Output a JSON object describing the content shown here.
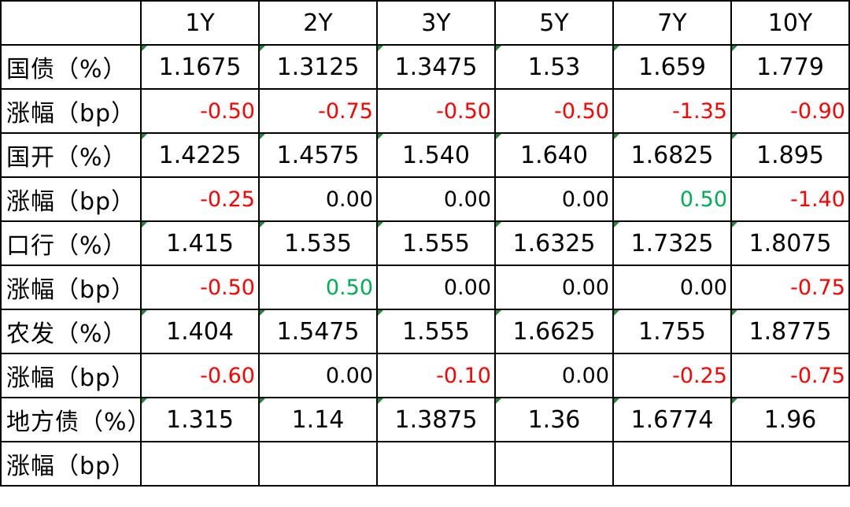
{
  "columns": [
    "1Y",
    "2Y",
    "3Y",
    "5Y",
    "7Y",
    "10Y"
  ],
  "rows": [
    {
      "label": "国债（%）",
      "kind": "yield",
      "values": [
        "1.1675",
        "1.3125",
        "1.3475",
        "1.53",
        "1.659",
        "1.779"
      ]
    },
    {
      "label": "涨幅（bp）",
      "kind": "change",
      "values": [
        "-0.50",
        "-0.75",
        "-0.50",
        "-0.50",
        "-1.35",
        "-0.90"
      ]
    },
    {
      "label": "国开（%）",
      "kind": "yield",
      "values": [
        "1.4225",
        "1.4575",
        "1.540",
        "1.640",
        "1.6825",
        "1.895"
      ]
    },
    {
      "label": "涨幅（bp）",
      "kind": "change",
      "values": [
        "-0.25",
        "0.00",
        "0.00",
        "0.00",
        "0.50",
        "-1.40"
      ]
    },
    {
      "label": "口行（%）",
      "kind": "yield",
      "values": [
        "1.415",
        "1.535",
        "1.555",
        "1.6325",
        "1.7325",
        "1.8075"
      ]
    },
    {
      "label": "涨幅（bp）",
      "kind": "change",
      "values": [
        "-0.50",
        "0.50",
        "0.00",
        "0.00",
        "0.00",
        "-0.75"
      ]
    },
    {
      "label": "农发（%）",
      "kind": "yield",
      "values": [
        "1.404",
        "1.5475",
        "1.555",
        "1.6625",
        "1.755",
        "1.8775"
      ]
    },
    {
      "label": "涨幅（bp）",
      "kind": "change",
      "values": [
        "-0.60",
        "0.00",
        "-0.10",
        "0.00",
        "-0.25",
        "-0.75"
      ]
    },
    {
      "label": "地方债（%）",
      "kind": "yield",
      "values": [
        "1.315",
        "1.14",
        "1.3875",
        "1.36",
        "1.6774",
        "1.96"
      ]
    },
    {
      "label": "涨幅（bp）",
      "kind": "change",
      "values": [
        "",
        "",
        "",
        "",
        "",
        ""
      ]
    }
  ],
  "colors": {
    "negative": "#ff0000",
    "positive": "#00b050",
    "neutral": "#000000"
  }
}
